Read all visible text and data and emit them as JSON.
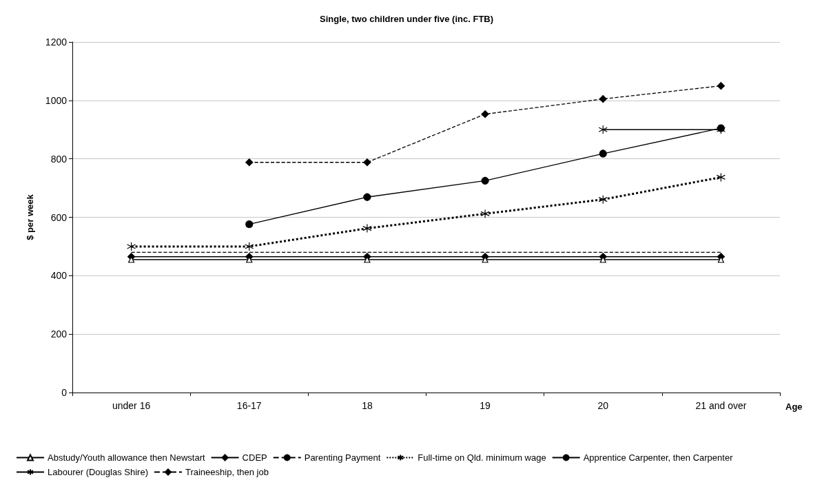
{
  "chart_data": {
    "type": "line",
    "title": "Single, two children under five (inc. FTB)",
    "xlabel": "Age",
    "ylabel": "$ per week",
    "categories": [
      "under 16",
      "16-17",
      "18",
      "19",
      "20",
      "21 and over"
    ],
    "ylim": [
      0,
      1200
    ],
    "yticks": [
      0,
      200,
      400,
      600,
      800,
      1000,
      1200
    ],
    "grid": "y",
    "legend": "bottom",
    "series": [
      {
        "name": "Abstudy/Youth allowance then Newstart",
        "color": "#000000",
        "marker": "triangle",
        "line_style": "solid",
        "values": [
          455,
          455,
          455,
          455,
          455,
          455
        ]
      },
      {
        "name": "CDEP",
        "color": "#000000",
        "marker": "diamond",
        "line_style": "solid",
        "values": [
          465,
          465,
          465,
          465,
          465,
          465
        ]
      },
      {
        "name": "Parenting Payment",
        "color": "#000000",
        "marker": "none",
        "line_style": "dashed",
        "values": [
          480,
          480,
          480,
          480,
          480,
          480
        ]
      },
      {
        "name": "Full-time on Qld. minimum wage",
        "color": "#000000",
        "marker": "cross",
        "line_style": "dotted",
        "values": [
          500,
          500,
          562,
          612,
          661,
          737
        ]
      },
      {
        "name": "Apprentice Carpenter, then Carpenter",
        "color": "#000000",
        "marker": "circle",
        "line_style": "solid",
        "values": [
          null,
          576,
          669,
          725,
          818,
          905
        ]
      },
      {
        "name": "Labourer (Douglas Shire)",
        "color": "#000000",
        "marker": "cross",
        "line_style": "solid",
        "values": [
          null,
          null,
          null,
          null,
          900,
          900
        ]
      },
      {
        "name": "Traineeship, then job",
        "color": "#000000",
        "marker": "diamond",
        "line_style": "dashed",
        "values": [
          null,
          788,
          788,
          953,
          1005,
          1050
        ]
      }
    ]
  }
}
